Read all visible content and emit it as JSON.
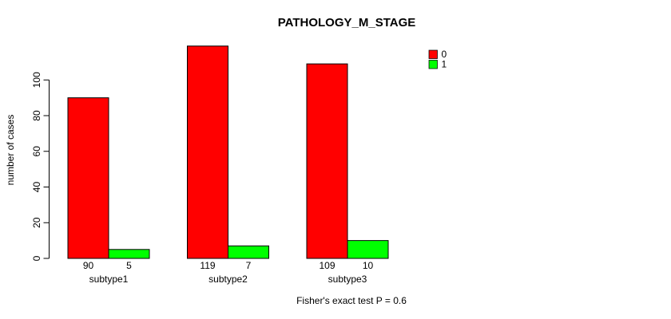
{
  "chart_data": {
    "type": "bar",
    "title": "PATHOLOGY_M_STAGE",
    "ylabel": "number of cases",
    "xlabel": "",
    "categories": [
      "subtype1",
      "subtype2",
      "subtype3"
    ],
    "series": [
      {
        "name": "0",
        "color": "#ff0000",
        "values": [
          90,
          119,
          109
        ]
      },
      {
        "name": "1",
        "color": "#00ff00",
        "values": [
          5,
          7,
          10
        ]
      }
    ],
    "yticks": [
      0,
      20,
      40,
      60,
      80,
      100
    ],
    "ylim": [
      0,
      124
    ],
    "grid": false,
    "bar_borders": "#000000",
    "value_labels_shown": true,
    "legend": {
      "position": "top-right",
      "entries": [
        {
          "label": "0",
          "color": "#ff0000"
        },
        {
          "label": "1",
          "color": "#00ff00"
        }
      ]
    },
    "footer": "Fisher's exact test P = 0.6"
  },
  "colors": {
    "background": "#ffffff",
    "text": "#000000",
    "series_0": "#ff0000",
    "series_1": "#00ff00"
  }
}
